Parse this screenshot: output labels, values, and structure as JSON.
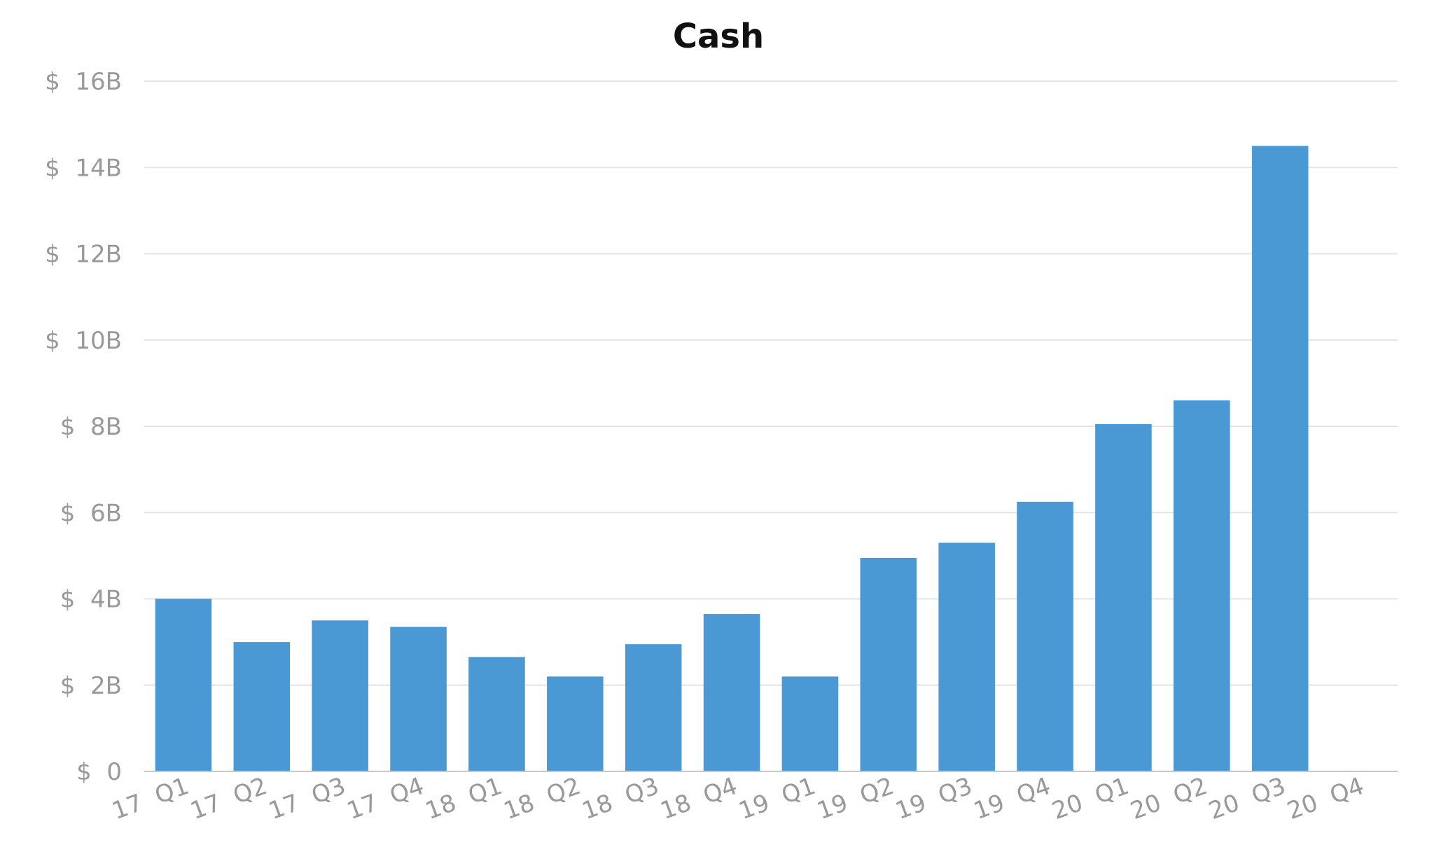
{
  "chart_data": {
    "type": "bar",
    "title": "Cash",
    "xlabel": "",
    "ylabel": "",
    "ylim": [
      0,
      16
    ],
    "y_ticks": [
      {
        "value": 0,
        "label": "$  0"
      },
      {
        "value": 2,
        "label": "$  2B"
      },
      {
        "value": 4,
        "label": "$  4B"
      },
      {
        "value": 6,
        "label": "$  6B"
      },
      {
        "value": 8,
        "label": "$  8B"
      },
      {
        "value": 10,
        "label": "$  10B"
      },
      {
        "value": 12,
        "label": "$  12B"
      },
      {
        "value": 14,
        "label": "$  14B"
      },
      {
        "value": 16,
        "label": "$  16B"
      }
    ],
    "grid": true,
    "legend": "none",
    "bar_color": "#4a98d4",
    "categories": [
      "17  Q1",
      "17  Q2",
      "17  Q3",
      "17  Q4",
      "18  Q1",
      "18  Q2",
      "18  Q3",
      "18  Q4",
      "19  Q1",
      "19  Q2",
      "19  Q3",
      "19  Q4",
      "20  Q1",
      "20  Q2",
      "20  Q3",
      "20  Q4"
    ],
    "values": [
      4.0,
      3.0,
      3.5,
      3.35,
      2.65,
      2.2,
      2.95,
      3.65,
      2.2,
      4.95,
      5.3,
      6.25,
      8.05,
      8.6,
      14.5,
      null
    ]
  }
}
